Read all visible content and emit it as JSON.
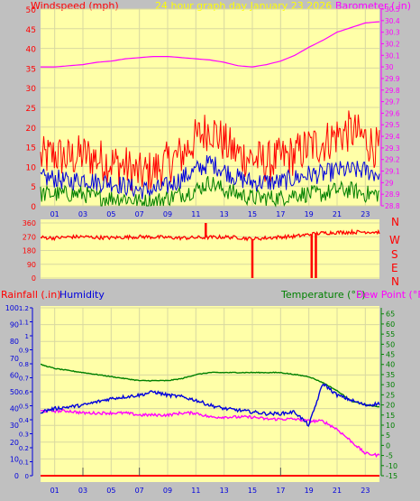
{
  "header": {
    "left_title": "Windspeed (mph)",
    "center_title": "24 hour graph day   January 23 2026",
    "right_title": "Barometer (.in)"
  },
  "wind_dir_labels": [
    "N",
    "W",
    "S",
    "E",
    "N"
  ],
  "bottom_headers": {
    "rainfall": "Rainfall (.in)",
    "humidity": "Humidity",
    "temperature": "Temperature (°F)",
    "dewpoint": "Dew Point (°F)"
  },
  "colors": {
    "plot_bg": "#ffffa8",
    "window_bg": "#c0c0c0",
    "wind_gust": "#ff0000",
    "wind_avg": "#0000dd",
    "wind_low": "#008000",
    "barometer": "#ff00ff",
    "direction": "#ff0000",
    "rain": "#ff0000",
    "humidity": "#0000dd",
    "temperature": "#008000",
    "dewpoint": "#ff00ff",
    "title_yellow": "#ffff00"
  },
  "chart_data": [
    {
      "type": "line",
      "id": "wind_baro",
      "x_ticks": [
        "01",
        "03",
        "05",
        "07",
        "09",
        "11",
        "13",
        "15",
        "17",
        "19",
        "21",
        "23"
      ],
      "y_left_ticks": [
        "0",
        "5",
        "10",
        "15",
        "20",
        "25",
        "30",
        "35",
        "40",
        "45",
        "50"
      ],
      "y_left_lim": [
        0,
        50
      ],
      "y_right_ticks": [
        "28.8",
        "28.9",
        "29",
        "29.1",
        "29.2",
        "29.3",
        "29.4",
        "29.5",
        "29.6",
        "29.7",
        "29.8",
        "29.9",
        "30",
        "30.1",
        "30.2",
        "30.3",
        "30.4",
        "30.5"
      ],
      "y_right_lim": [
        28.8,
        30.5
      ],
      "x": [
        0,
        1,
        2,
        3,
        4,
        5,
        6,
        7,
        8,
        9,
        10,
        11,
        12,
        13,
        14,
        15,
        16,
        17,
        18,
        19,
        20,
        21,
        22,
        23,
        24
      ],
      "series": [
        {
          "axis": "left",
          "values": [
            12,
            13,
            12,
            13,
            12,
            11,
            10,
            8,
            9,
            11,
            13,
            17,
            20,
            16,
            13,
            12,
            11,
            12,
            13,
            15,
            16,
            18,
            19,
            17,
            14
          ]
        },
        {
          "axis": "left",
          "values": [
            7,
            7,
            6,
            7,
            6,
            6,
            5,
            4,
            4,
            5,
            7,
            9,
            11,
            9,
            7,
            6,
            6,
            6,
            7,
            8,
            8,
            9,
            9,
            9,
            8
          ]
        },
        {
          "axis": "left",
          "values": [
            3,
            3,
            3,
            3,
            2,
            2,
            2,
            1,
            1,
            2,
            3,
            4,
            6,
            4,
            3,
            2,
            2,
            2,
            3,
            3,
            3,
            4,
            4,
            3,
            3
          ]
        },
        {
          "axis": "right",
          "values": [
            30.0,
            30.0,
            30.01,
            30.02,
            30.04,
            30.05,
            30.07,
            30.08,
            30.09,
            30.09,
            30.08,
            30.07,
            30.06,
            30.04,
            30.01,
            30.0,
            30.02,
            30.05,
            30.1,
            30.17,
            30.23,
            30.3,
            30.34,
            30.38,
            30.39
          ]
        }
      ]
    },
    {
      "type": "line",
      "id": "wind_direction",
      "y_ticks": [
        "360",
        "270",
        "180",
        "90",
        "0"
      ],
      "ylim": [
        0,
        360
      ],
      "x": [
        0,
        1,
        2,
        3,
        4,
        5,
        6,
        7,
        8,
        9,
        10,
        11,
        12,
        13,
        14,
        15,
        16,
        17,
        18,
        19,
        20,
        21,
        22,
        23,
        24
      ],
      "series": [
        {
          "values": [
            265,
            262,
            268,
            270,
            265,
            263,
            267,
            270,
            268,
            265,
            262,
            264,
            266,
            268,
            265,
            255,
            262,
            268,
            272,
            285,
            295,
            298,
            300,
            302,
            300
          ]
        }
      ],
      "spikes": [
        {
          "x": 11.7,
          "y": 360
        },
        {
          "x": 15.0,
          "y": 0
        },
        {
          "x": 19.2,
          "y": 0
        },
        {
          "x": 19.5,
          "y": 0
        }
      ]
    },
    {
      "type": "line",
      "id": "humidity_temp",
      "x_ticks": [
        "01",
        "03",
        "05",
        "07",
        "09",
        "11",
        "13",
        "15",
        "17",
        "19",
        "21",
        "23"
      ],
      "y_humidity_ticks": [
        "0",
        "10",
        "20",
        "30",
        "40",
        "50",
        "60",
        "70",
        "80",
        "90",
        "100"
      ],
      "humidity_lim": [
        0,
        100
      ],
      "y_rain_ticks": [
        "0",
        "0.1",
        "0.2",
        "0.3",
        "0.4",
        "0.5",
        "0.6",
        "0.7",
        "0.8",
        "0.9",
        "1",
        "1.1",
        "1.2"
      ],
      "rain_lim": [
        0,
        1.2
      ],
      "y_temp_ticks": [
        "-15",
        "-10",
        "-5",
        "0",
        "5",
        "10",
        "15",
        "20",
        "25",
        "30",
        "35",
        "40",
        "45",
        "50",
        "55",
        "60",
        "65"
      ],
      "temp_lim": [
        -15,
        68
      ],
      "x": [
        0,
        1,
        2,
        3,
        4,
        5,
        6,
        7,
        8,
        9,
        10,
        11,
        12,
        13,
        14,
        15,
        16,
        17,
        18,
        19,
        20,
        21,
        22,
        23,
        24
      ],
      "series": [
        {
          "name": "Humidity",
          "axis": "humidity",
          "values": [
            38,
            40,
            41,
            42,
            44,
            46,
            47,
            48,
            50,
            48,
            47,
            45,
            42,
            40,
            39,
            38,
            37,
            37,
            38,
            30,
            55,
            48,
            45,
            42,
            43
          ]
        },
        {
          "name": "Temperature",
          "axis": "temp",
          "values": [
            40,
            38,
            37,
            36,
            35,
            34,
            33,
            32,
            32,
            32,
            33,
            35,
            36,
            36,
            36,
            36,
            36,
            36,
            35,
            34,
            31,
            27,
            22,
            20,
            19
          ]
        },
        {
          "name": "Dew Point",
          "axis": "temp",
          "values": [
            17,
            17,
            17,
            16,
            16,
            16,
            16,
            15,
            15,
            15,
            16,
            16,
            14,
            14,
            14,
            14,
            13,
            13,
            13,
            12,
            12,
            8,
            2,
            -4,
            -5
          ]
        },
        {
          "name": "Rainfall",
          "axis": "rain",
          "values": [
            0,
            0,
            0,
            0,
            0,
            0,
            0,
            0,
            0,
            0,
            0,
            0,
            0,
            0,
            0,
            0,
            0,
            0,
            0,
            0,
            0,
            0,
            0,
            0,
            0
          ]
        }
      ]
    }
  ]
}
